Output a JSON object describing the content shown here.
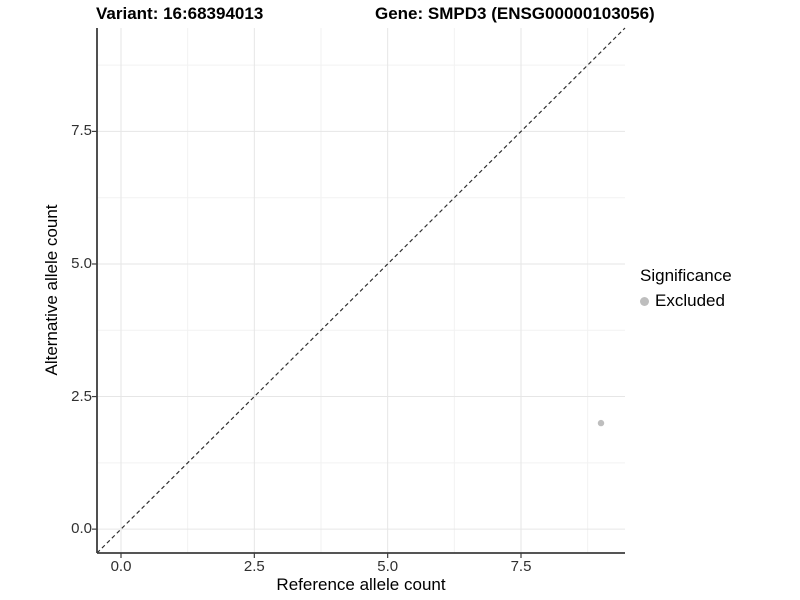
{
  "titles": {
    "variant": "Variant: 16:68394013",
    "gene": "Gene: SMPD3 (ENSG00000103056)"
  },
  "chart_data": {
    "type": "scatter",
    "title_left": "Variant: 16:68394013",
    "title_right": "Gene: SMPD3 (ENSG00000103056)",
    "xlabel": "Reference allele count",
    "ylabel": "Alternative allele count",
    "xlim": [
      -0.45,
      9.45
    ],
    "ylim": [
      -0.45,
      9.45
    ],
    "x_ticks": [
      0,
      2.5,
      5,
      7.5
    ],
    "x_tick_labels": [
      "0.0",
      "2.5",
      "5.0",
      "7.5"
    ],
    "y_ticks": [
      0,
      2.5,
      5,
      7.5
    ],
    "y_tick_labels": [
      "0.0",
      "2.5",
      "5.0",
      "7.5"
    ],
    "grid": "major and minor gridlines on white panel",
    "points": [
      {
        "x": 9,
        "y": 2,
        "significance": "Excluded"
      }
    ],
    "reference_line": {
      "type": "identity y=x",
      "style": "dashed",
      "color": "#303030"
    },
    "legend": {
      "title": "Significance",
      "position": "right-center",
      "entries": [
        {
          "label": "Excluded",
          "color": "#bebebe"
        }
      ]
    }
  },
  "colors": {
    "background": "#ffffff",
    "title_text": "#000000",
    "axis_line": "#3d3d3d",
    "tick_text": "#303030",
    "grid_major": "#e6e6e6",
    "grid_minor": "#f2f2f2",
    "point": "#bebebe"
  }
}
